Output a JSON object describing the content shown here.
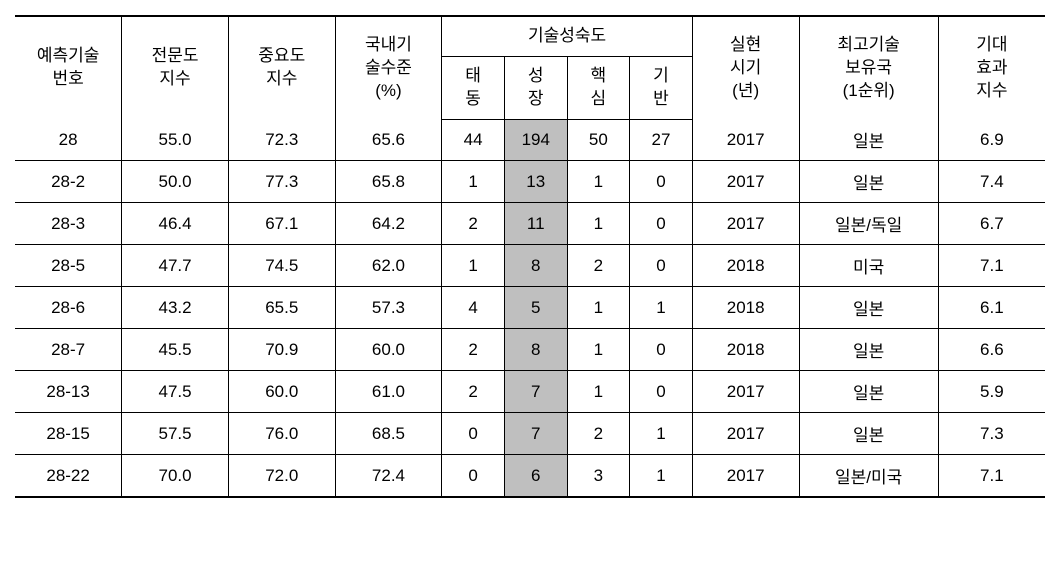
{
  "headers": {
    "tech_num": "예측기술\n번호",
    "expertise": "전문도\n지수",
    "importance": "중요도\n지수",
    "domestic": "국내기\n술수준\n(%)",
    "maturity_group": "기술성숙도",
    "maturity_sub": {
      "emer": "태\n동",
      "grow": "성\n장",
      "core": "핵\n심",
      "base": "기\n반"
    },
    "year": "실현\n시기\n(년)",
    "country": "최고기술\n보유국\n(1순위)",
    "effect": "기대\n효과\n지수"
  },
  "rows": [
    {
      "num": "28",
      "expertise": "55.0",
      "importance": "72.3",
      "domestic": "65.6",
      "emer": "44",
      "grow": "194",
      "core": "50",
      "base": "27",
      "year": "2017",
      "country": "일본",
      "effect": "6.9"
    },
    {
      "num": "28-2",
      "expertise": "50.0",
      "importance": "77.3",
      "domestic": "65.8",
      "emer": "1",
      "grow": "13",
      "core": "1",
      "base": "0",
      "year": "2017",
      "country": "일본",
      "effect": "7.4"
    },
    {
      "num": "28-3",
      "expertise": "46.4",
      "importance": "67.1",
      "domestic": "64.2",
      "emer": "2",
      "grow": "11",
      "core": "1",
      "base": "0",
      "year": "2017",
      "country": "일본/독일",
      "effect": "6.7"
    },
    {
      "num": "28-5",
      "expertise": "47.7",
      "importance": "74.5",
      "domestic": "62.0",
      "emer": "1",
      "grow": "8",
      "core": "2",
      "base": "0",
      "year": "2018",
      "country": "미국",
      "effect": "7.1"
    },
    {
      "num": "28-6",
      "expertise": "43.2",
      "importance": "65.5",
      "domestic": "57.3",
      "emer": "4",
      "grow": "5",
      "core": "1",
      "base": "1",
      "year": "2018",
      "country": "일본",
      "effect": "6.1"
    },
    {
      "num": "28-7",
      "expertise": "45.5",
      "importance": "70.9",
      "domestic": "60.0",
      "emer": "2",
      "grow": "8",
      "core": "1",
      "base": "0",
      "year": "2018",
      "country": "일본",
      "effect": "6.6"
    },
    {
      "num": "28-13",
      "expertise": "47.5",
      "importance": "60.0",
      "domestic": "61.0",
      "emer": "2",
      "grow": "7",
      "core": "1",
      "base": "0",
      "year": "2017",
      "country": "일본",
      "effect": "5.9"
    },
    {
      "num": "28-15",
      "expertise": "57.5",
      "importance": "76.0",
      "domestic": "68.5",
      "emer": "0",
      "grow": "7",
      "core": "2",
      "base": "1",
      "year": "2017",
      "country": "일본",
      "effect": "7.3"
    },
    {
      "num": "28-22",
      "expertise": "70.0",
      "importance": "72.0",
      "domestic": "72.4",
      "emer": "0",
      "grow": "6",
      "core": "3",
      "base": "1",
      "year": "2017",
      "country": "일본/미국",
      "effect": "7.1"
    }
  ],
  "highlight_column": "grow",
  "colors": {
    "highlight_bg": "#bfbfbf",
    "border": "#000000",
    "text": "#000000",
    "background": "#ffffff"
  },
  "font": {
    "family": "Malgun Gothic",
    "size_pt": 13
  }
}
